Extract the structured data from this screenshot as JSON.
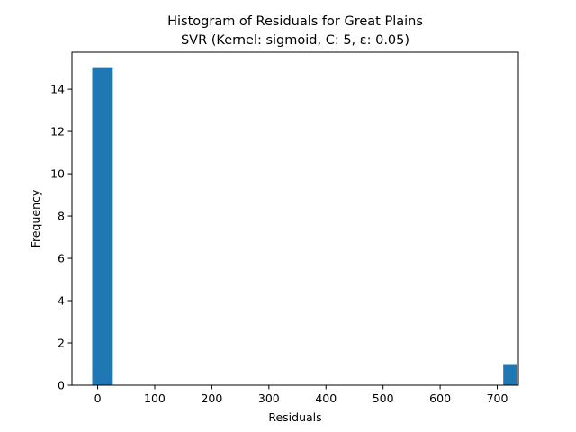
{
  "chart_data": {
    "type": "bar",
    "title": "Histogram of Residuals for Great Plains",
    "subtitle": "SVR (Kernel: sigmoid, C: 5, ε: 0.05)",
    "xlabel": "Residuals",
    "ylabel": "Frequency",
    "xlim": [
      -45,
      737
    ],
    "ylim": [
      0,
      15.75
    ],
    "xticks": [
      0,
      100,
      200,
      300,
      400,
      500,
      600,
      700
    ],
    "yticks": [
      0,
      2,
      4,
      6,
      8,
      10,
      12,
      14
    ],
    "bin_edges": [
      -9.5,
      26.5,
      62.5,
      98.5,
      134.5,
      170.5,
      206.5,
      242.5,
      278.5,
      314.5,
      350.5,
      386.5,
      422.5,
      458.5,
      494.5,
      530.5,
      566.5,
      602.5,
      638.5,
      674.5,
      710.5,
      734.0
    ],
    "counts": [
      15,
      0,
      0,
      0,
      0,
      0,
      0,
      0,
      0,
      0,
      0,
      0,
      0,
      0,
      0,
      0,
      0,
      0,
      0,
      0,
      1
    ],
    "grid": false,
    "bar_color": "#1f77b4"
  }
}
